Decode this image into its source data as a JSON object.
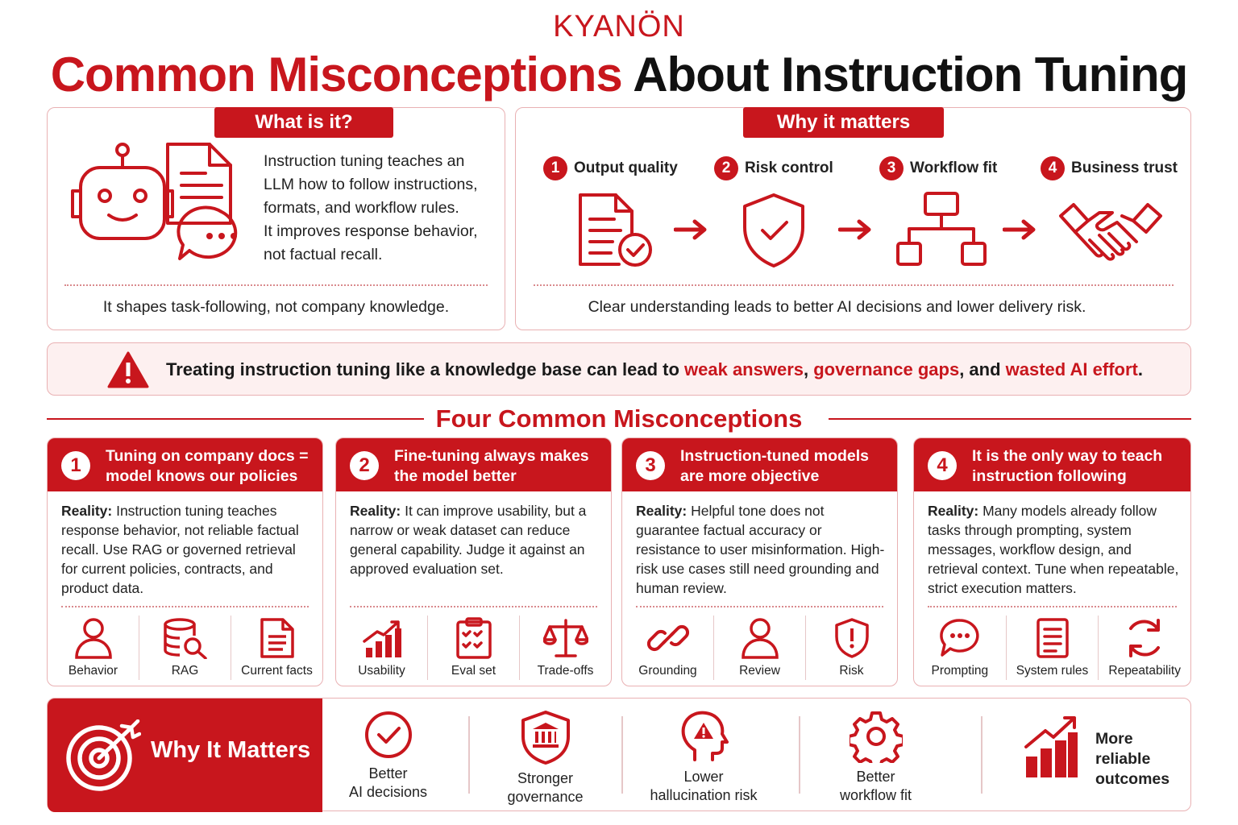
{
  "logo": "KYANÖN",
  "title": {
    "part1": "Common Misconceptions",
    "part2": "About Instruction Tuning"
  },
  "what_is_it": {
    "header": "What is it?",
    "lines": [
      "Instruction tuning teaches an",
      "LLM how to follow instructions,",
      "formats, and workflow rules.",
      "It improves response behavior,",
      "not factual recall."
    ],
    "footer": "It shapes task-following, not company knowledge."
  },
  "why_it_matters_top": {
    "header": "Why it matters",
    "steps": [
      {
        "num": "1",
        "label": "Output quality",
        "icon": "document-check-icon"
      },
      {
        "num": "2",
        "label": "Risk control",
        "icon": "shield-check-icon"
      },
      {
        "num": "3",
        "label": "Workflow fit",
        "icon": "workflow-tree-icon"
      },
      {
        "num": "4",
        "label": "Business trust",
        "icon": "handshake-icon"
      }
    ],
    "footer": "Clear understanding leads to better AI decisions and lower delivery risk."
  },
  "warning": {
    "icon": "warning-triangle-icon",
    "prefix": "Treating instruction tuning like a knowledge base can lead to ",
    "h1": "weak answers",
    "sep1": ", ",
    "h2": "governance gaps",
    "sep2": ", and ",
    "h3": "wasted AI effort",
    "end": "."
  },
  "section_title": "Four Common Misconceptions",
  "misconceptions": [
    {
      "num": "1",
      "title": "Tuning on company docs = model knows our policies",
      "reality_label": "Reality:",
      "reality": " Instruction tuning teaches response behavior, not reliable factual recall. Use RAG or governed retrieval for current policies, contracts, and product data.",
      "icons": [
        {
          "label": "Behavior",
          "icon": "person-icon"
        },
        {
          "label": "RAG",
          "icon": "database-search-icon"
        },
        {
          "label": "Current facts",
          "icon": "document-icon"
        }
      ]
    },
    {
      "num": "2",
      "title": "Fine-tuning always makes the model better",
      "reality_label": "Reality:",
      "reality": " It can improve usability, but a narrow or weak dataset can reduce general capability. Judge it against an approved evaluation set.",
      "icons": [
        {
          "label": "Usability",
          "icon": "bar-chart-up-icon"
        },
        {
          "label": "Eval set",
          "icon": "checklist-clipboard-icon"
        },
        {
          "label": "Trade-offs",
          "icon": "balance-scale-icon"
        }
      ]
    },
    {
      "num": "3",
      "title": "Instruction-tuned models are more objective",
      "reality_label": "Reality:",
      "reality": " Helpful tone does not guarantee factual accuracy or resistance to user misinformation. High-risk use cases still need grounding and human review.",
      "icons": [
        {
          "label": "Grounding",
          "icon": "link-icon"
        },
        {
          "label": "Review",
          "icon": "person-icon"
        },
        {
          "label": "Risk",
          "icon": "shield-alert-icon"
        }
      ]
    },
    {
      "num": "4",
      "title": "It is the only way to teach instruction following",
      "reality_label": "Reality:",
      "reality": " Many models already follow tasks through prompting, system messages, workflow design, and retrieval context. Tune when repeatable, strict execution matters.",
      "icons": [
        {
          "label": "Prompting",
          "icon": "chat-bubble-icon"
        },
        {
          "label": "System rules",
          "icon": "document-lines-icon"
        },
        {
          "label": "Repeatability",
          "icon": "refresh-cycle-icon"
        }
      ]
    }
  ],
  "bottom": {
    "title": "Why It Matters",
    "items": [
      {
        "line1": "Better",
        "line2": "AI decisions",
        "icon": "check-circle-icon"
      },
      {
        "line1": "Stronger",
        "line2": "governance",
        "icon": "shield-bank-icon"
      },
      {
        "line1": "Lower",
        "line2": "hallucination risk",
        "icon": "head-warning-icon"
      },
      {
        "line1": "Better",
        "line2": "workflow fit",
        "icon": "gear-icon"
      }
    ],
    "last": {
      "line1": "More",
      "line2": "reliable",
      "line3": "outcomes",
      "icon": "growth-chart-icon"
    }
  },
  "colors": {
    "accent": "#c8161d",
    "border": "#e9b1b3",
    "warn_bg": "#fdf0f0"
  }
}
